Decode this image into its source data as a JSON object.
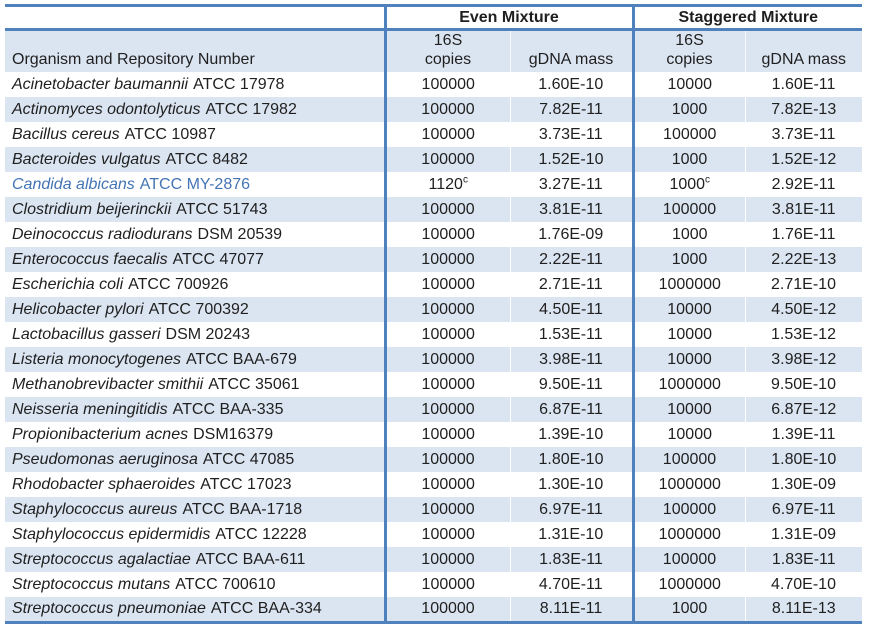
{
  "table": {
    "group_headers": [
      {
        "label": "Even Mixture"
      },
      {
        "label": "Staggered Mixture"
      }
    ],
    "column_headers": {
      "organism": "Organism and Repository Number",
      "copies_line1": "16S",
      "copies_line2": "copies",
      "gdna_mass": "gDNA mass"
    },
    "rows": [
      {
        "species": "Acinetobacter baumannii",
        "repo": "ATCC 17978",
        "even_copies": "100000",
        "even_sup": "",
        "even_gdna": "1.60E-10",
        "stag_copies": "10000",
        "stag_sup": "",
        "stag_gdna": "1.60E-11",
        "accent": false
      },
      {
        "species": "Actinomyces odontolyticus",
        "repo": "ATCC 17982",
        "even_copies": "100000",
        "even_sup": "",
        "even_gdna": "7.82E-11",
        "stag_copies": "1000",
        "stag_sup": "",
        "stag_gdna": "7.82E-13",
        "accent": false
      },
      {
        "species": "Bacillus cereus",
        "repo": "ATCC 10987",
        "even_copies": "100000",
        "even_sup": "",
        "even_gdna": "3.73E-11",
        "stag_copies": "100000",
        "stag_sup": "",
        "stag_gdna": "3.73E-11",
        "accent": false
      },
      {
        "species": "Bacteroides vulgatus",
        "repo": "ATCC 8482",
        "even_copies": "100000",
        "even_sup": "",
        "even_gdna": "1.52E-10",
        "stag_copies": "1000",
        "stag_sup": "",
        "stag_gdna": "1.52E-12",
        "accent": false
      },
      {
        "species": "Candida albicans",
        "repo": "ATCC MY-2876",
        "even_copies": "1120",
        "even_sup": "c",
        "even_gdna": "3.27E-11",
        "stag_copies": "1000",
        "stag_sup": "c",
        "stag_gdna": "2.92E-11",
        "accent": true
      },
      {
        "species": "Clostridium beijerinckii",
        "repo": "ATCC 51743",
        "even_copies": "100000",
        "even_sup": "",
        "even_gdna": "3.81E-11",
        "stag_copies": "100000",
        "stag_sup": "",
        "stag_gdna": "3.81E-11",
        "accent": false
      },
      {
        "species": "Deinococcus radiodurans",
        "repo": "DSM 20539",
        "even_copies": "100000",
        "even_sup": "",
        "even_gdna": "1.76E-09",
        "stag_copies": "1000",
        "stag_sup": "",
        "stag_gdna": "1.76E-11",
        "accent": false
      },
      {
        "species": "Enterococcus faecalis",
        "repo": "ATCC 47077",
        "even_copies": "100000",
        "even_sup": "",
        "even_gdna": "2.22E-11",
        "stag_copies": "1000",
        "stag_sup": "",
        "stag_gdna": "2.22E-13",
        "accent": false
      },
      {
        "species": "Escherichia coli",
        "repo": "ATCC 700926",
        "even_copies": "100000",
        "even_sup": "",
        "even_gdna": "2.71E-11",
        "stag_copies": "1000000",
        "stag_sup": "",
        "stag_gdna": "2.71E-10",
        "accent": false
      },
      {
        "species": "Helicobacter pylori",
        "repo": "ATCC 700392",
        "even_copies": "100000",
        "even_sup": "",
        "even_gdna": "4.50E-11",
        "stag_copies": "10000",
        "stag_sup": "",
        "stag_gdna": "4.50E-12",
        "accent": false
      },
      {
        "species": "Lactobacillus gasseri",
        "repo": "DSM 20243",
        "even_copies": "100000",
        "even_sup": "",
        "even_gdna": "1.53E-11",
        "stag_copies": "10000",
        "stag_sup": "",
        "stag_gdna": "1.53E-12",
        "accent": false
      },
      {
        "species": "Listeria monocytogenes",
        "repo": "ATCC BAA-679",
        "even_copies": "100000",
        "even_sup": "",
        "even_gdna": "3.98E-11",
        "stag_copies": "10000",
        "stag_sup": "",
        "stag_gdna": "3.98E-12",
        "accent": false
      },
      {
        "species": "Methanobrevibacter smithii",
        "repo": "ATCC 35061",
        "even_copies": "100000",
        "even_sup": "",
        "even_gdna": "9.50E-11",
        "stag_copies": "1000000",
        "stag_sup": "",
        "stag_gdna": "9.50E-10",
        "accent": false
      },
      {
        "species": "Neisseria meningitidis",
        "repo": "ATCC BAA-335",
        "even_copies": "100000",
        "even_sup": "",
        "even_gdna": "6.87E-11",
        "stag_copies": "10000",
        "stag_sup": "",
        "stag_gdna": "6.87E-12",
        "accent": false
      },
      {
        "species": "Propionibacterium acnes",
        "repo": "DSM16379",
        "even_copies": "100000",
        "even_sup": "",
        "even_gdna": "1.39E-10",
        "stag_copies": "10000",
        "stag_sup": "",
        "stag_gdna": "1.39E-11",
        "accent": false
      },
      {
        "species": "Pseudomonas aeruginosa",
        "repo": "ATCC 47085",
        "even_copies": "100000",
        "even_sup": "",
        "even_gdna": "1.80E-10",
        "stag_copies": "100000",
        "stag_sup": "",
        "stag_gdna": "1.80E-10",
        "accent": false
      },
      {
        "species": "Rhodobacter sphaeroides",
        "repo": "ATCC 17023",
        "even_copies": "100000",
        "even_sup": "",
        "even_gdna": "1.30E-10",
        "stag_copies": "1000000",
        "stag_sup": "",
        "stag_gdna": "1.30E-09",
        "accent": false
      },
      {
        "species": "Staphylococcus aureus",
        "repo": "ATCC BAA-1718",
        "even_copies": "100000",
        "even_sup": "",
        "even_gdna": "6.97E-11",
        "stag_copies": "100000",
        "stag_sup": "",
        "stag_gdna": "6.97E-11",
        "accent": false
      },
      {
        "species": "Staphylococcus epidermidis",
        "repo": "ATCC 12228",
        "even_copies": "100000",
        "even_sup": "",
        "even_gdna": "1.31E-10",
        "stag_copies": "1000000",
        "stag_sup": "",
        "stag_gdna": "1.31E-09",
        "accent": false
      },
      {
        "species": "Streptococcus agalactiae",
        "repo": "ATCC BAA-611",
        "even_copies": "100000",
        "even_sup": "",
        "even_gdna": "1.83E-11",
        "stag_copies": "100000",
        "stag_sup": "",
        "stag_gdna": "1.83E-11",
        "accent": false
      },
      {
        "species": "Streptococcus mutans",
        "repo": "ATCC 700610",
        "even_copies": "100000",
        "even_sup": "",
        "even_gdna": "4.70E-11",
        "stag_copies": "1000000",
        "stag_sup": "",
        "stag_gdna": "4.70E-10",
        "accent": false
      },
      {
        "species": "Streptococcus pneumoniae",
        "repo": "ATCC BAA-334",
        "even_copies": "100000",
        "even_sup": "",
        "even_gdna": "8.11E-11",
        "stag_copies": "1000",
        "stag_sup": "",
        "stag_gdna": "8.11E-13",
        "accent": false
      }
    ]
  },
  "colors": {
    "border_blue": "#4f81bd",
    "band_blue": "#dbe5f1",
    "accent_text_blue": "#4374b4"
  }
}
